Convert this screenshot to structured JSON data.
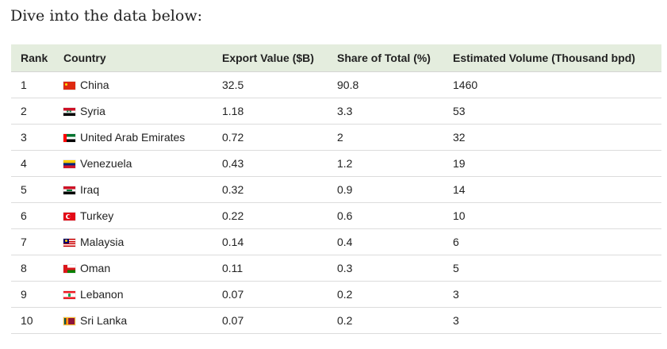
{
  "intro": "Dive into the data below:",
  "table": {
    "headers": {
      "rank": "Rank",
      "country": "Country",
      "export": "Export Value ($B)",
      "share": "Share of Total (%)",
      "volume": "Estimated Volume (Thousand bpd)"
    },
    "rows": [
      {
        "rank": "1",
        "flag": "china-flag-icon",
        "country": "China",
        "export": "32.5",
        "share": "90.8",
        "volume": "1460"
      },
      {
        "rank": "2",
        "flag": "syria-flag-icon",
        "country": "Syria",
        "export": "1.18",
        "share": "3.3",
        "volume": "53"
      },
      {
        "rank": "3",
        "flag": "uae-flag-icon",
        "country": "United Arab Emirates",
        "export": "0.72",
        "share": "2",
        "volume": "32"
      },
      {
        "rank": "4",
        "flag": "venezuela-flag-icon",
        "country": "Venezuela",
        "export": "0.43",
        "share": "1.2",
        "volume": "19"
      },
      {
        "rank": "5",
        "flag": "iraq-flag-icon",
        "country": "Iraq",
        "export": "0.32",
        "share": "0.9",
        "volume": "14"
      },
      {
        "rank": "6",
        "flag": "turkey-flag-icon",
        "country": "Turkey",
        "export": "0.22",
        "share": "0.6",
        "volume": "10"
      },
      {
        "rank": "7",
        "flag": "malaysia-flag-icon",
        "country": "Malaysia",
        "export": "0.14",
        "share": "0.4",
        "volume": "6"
      },
      {
        "rank": "8",
        "flag": "oman-flag-icon",
        "country": "Oman",
        "export": "0.11",
        "share": "0.3",
        "volume": "5"
      },
      {
        "rank": "9",
        "flag": "lebanon-flag-icon",
        "country": "Lebanon",
        "export": "0.07",
        "share": "0.2",
        "volume": "3"
      },
      {
        "rank": "10",
        "flag": "sri-lanka-flag-icon",
        "country": "Sri Lanka",
        "export": "0.07",
        "share": "0.2",
        "volume": "3"
      }
    ]
  },
  "colors": {
    "header_background": "#e4edde",
    "row_border": "#dcdcdc",
    "text": "#222222"
  }
}
